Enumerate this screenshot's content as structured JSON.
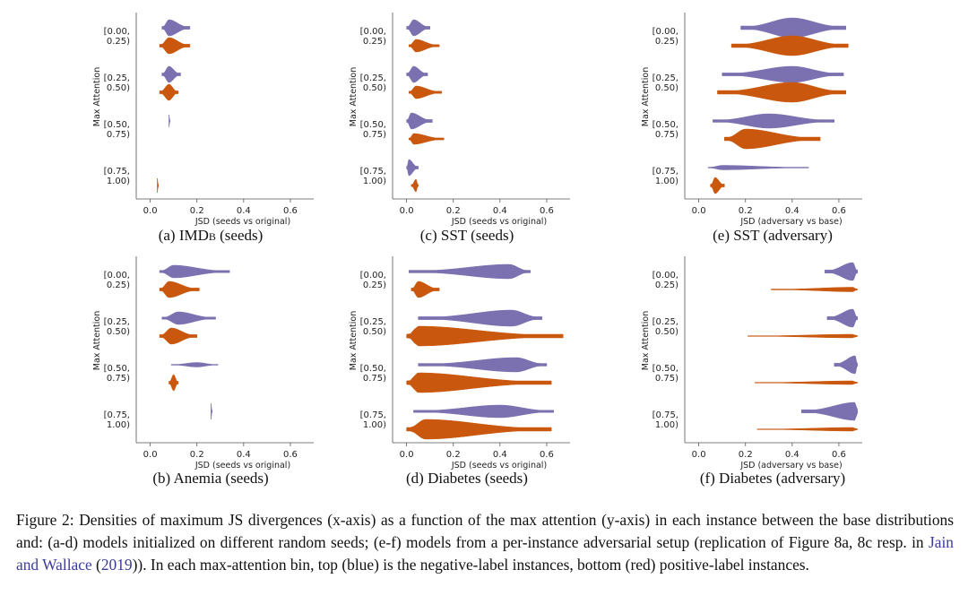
{
  "figure": {
    "caption": {
      "label": "Figure 2:",
      "text_before": " Densities of maximum JS divergences (x-axis) as a function of the max attention (y-axis) in each instance between the base distributions and: (a-d) models initialized on different random seeds; (e-f) models from a per-instance adversarial setup (replication of Figure 8a, 8c resp. in ",
      "ref": "Jain and Wallace",
      "ref_open": " (",
      "ref_year": "2019",
      "text_after": ")).  In each max-attention bin, top (blue) is the negative-label instances, bottom (red) positive-label instances."
    }
  },
  "colors": {
    "negative": "#7b70b0",
    "positive": "#c9580e",
    "axis": "#555555"
  },
  "chart_data": [
    {
      "id": "a",
      "type": "violin",
      "caption_prefix": "(a) IMD",
      "caption_smallcaps": "b",
      "caption_suffix": " (seeds)",
      "ylabel": "Max Attention",
      "xlabel": "JSD (seeds vs original)",
      "xlim": [
        -0.06,
        0.7
      ],
      "xticks": [
        "0.0",
        "0.2",
        "0.4",
        "0.6"
      ],
      "bins": [
        [
          "[0.00,",
          "0.25)"
        ],
        [
          "[0.25,",
          "0.50)"
        ],
        [
          "[0.50,",
          "0.75)"
        ],
        [
          "[0.75,",
          "1.00)"
        ]
      ],
      "series": [
        {
          "name": "negative",
          "violins": [
            [
              0.05,
              0.08,
              0.17,
              9
            ],
            [
              0.05,
              0.08,
              0.13,
              9
            ],
            [
              0.08,
              0.08,
              0.085,
              7
            ],
            null
          ]
        },
        {
          "name": "positive",
          "violins": [
            [
              0.04,
              0.08,
              0.17,
              9
            ],
            [
              0.04,
              0.08,
              0.12,
              9
            ],
            null,
            [
              0.03,
              0.03,
              0.035,
              8
            ]
          ]
        }
      ]
    },
    {
      "id": "b",
      "type": "violin",
      "caption_prefix": "(b) Anemia (seeds)",
      "caption_smallcaps": "",
      "caption_suffix": "",
      "ylabel": "Max Attention",
      "xlabel": "JSD (seeds vs original)",
      "xlim": [
        -0.06,
        0.7
      ],
      "xticks": [
        "0.0",
        "0.2",
        "0.4",
        "0.6"
      ],
      "bins": [
        [
          "[0.00,",
          "0.25)"
        ],
        [
          "[0.25,",
          "0.50)"
        ],
        [
          "[0.50,",
          "0.75)"
        ],
        [
          "[0.75,",
          "1.00)"
        ]
      ],
      "series": [
        {
          "name": "negative",
          "violins": [
            [
              0.04,
              0.1,
              0.34,
              7
            ],
            [
              0.05,
              0.12,
              0.28,
              7
            ],
            [
              0.09,
              0.2,
              0.29,
              2.5
            ],
            [
              0.26,
              0.26,
              0.265,
              9
            ]
          ]
        },
        {
          "name": "positive",
          "violins": [
            [
              0.04,
              0.08,
              0.21,
              9
            ],
            [
              0.04,
              0.09,
              0.2,
              9
            ],
            [
              0.08,
              0.1,
              0.12,
              9
            ],
            null
          ]
        }
      ]
    },
    {
      "id": "c",
      "type": "violin",
      "caption_prefix": "(c) SST (seeds)",
      "caption_smallcaps": "",
      "caption_suffix": "",
      "ylabel": "Max Attention",
      "xlabel": "JSD (seeds vs original)",
      "xlim": [
        -0.06,
        0.7
      ],
      "xticks": [
        "0.0",
        "0.2",
        "0.4",
        "0.6"
      ],
      "bins": [
        [
          "[0.00,",
          "0.25)"
        ],
        [
          "[0.25,",
          "0.50)"
        ],
        [
          "[0.50,",
          "0.75)"
        ],
        [
          "[0.75,",
          "1.00)"
        ]
      ],
      "series": [
        {
          "name": "negative",
          "violins": [
            [
              0.0,
              0.03,
              0.1,
              9
            ],
            [
              0.0,
              0.03,
              0.09,
              9
            ],
            [
              0.0,
              0.02,
              0.11,
              9
            ],
            [
              0.0,
              0.01,
              0.05,
              9
            ]
          ]
        },
        {
          "name": "positive",
          "violins": [
            [
              0.01,
              0.04,
              0.14,
              7
            ],
            [
              0.01,
              0.04,
              0.15,
              7
            ],
            [
              0.01,
              0.03,
              0.16,
              6
            ],
            [
              0.02,
              0.04,
              0.05,
              7
            ]
          ]
        }
      ]
    },
    {
      "id": "d",
      "type": "violin",
      "caption_prefix": "(d) Diabetes (seeds)",
      "caption_smallcaps": "",
      "caption_suffix": "",
      "ylabel": "Max Attention",
      "xlabel": "JSD (seeds vs original)",
      "xlim": [
        -0.06,
        0.7
      ],
      "xticks": [
        "0.0",
        "0.2",
        "0.4",
        "0.6"
      ],
      "bins": [
        [
          "[0.00,",
          "0.25)"
        ],
        [
          "[0.25,",
          "0.50)"
        ],
        [
          "[0.50,",
          "0.75)"
        ],
        [
          "[0.75,",
          "1.00)"
        ]
      ],
      "series": [
        {
          "name": "negative",
          "violins": [
            [
              0.01,
              0.44,
              0.53,
              8
            ],
            [
              0.05,
              0.45,
              0.58,
              9
            ],
            [
              0.05,
              0.47,
              0.6,
              8
            ],
            [
              0.03,
              0.4,
              0.63,
              7
            ]
          ]
        },
        {
          "name": "positive",
          "violins": [
            [
              0.02,
              0.05,
              0.14,
              9
            ],
            [
              0.0,
              0.05,
              0.67,
              11
            ],
            [
              0.0,
              0.05,
              0.62,
              11
            ],
            [
              0.0,
              0.08,
              0.62,
              11
            ]
          ]
        }
      ]
    },
    {
      "id": "e",
      "type": "violin",
      "caption_prefix": "(e) SST (adversary)",
      "caption_smallcaps": "",
      "caption_suffix": "",
      "ylabel": "Max Attention",
      "xlabel": "JSD (adversary vs base)",
      "xlim": [
        -0.06,
        0.7
      ],
      "xticks": [
        "0.0",
        "0.2",
        "0.4",
        "0.6"
      ],
      "bins": [
        [
          "[0.00,",
          "0.25)"
        ],
        [
          "[0.25,",
          "0.50)"
        ],
        [
          "[0.50,",
          "0.75)"
        ],
        [
          "[0.75,",
          "1.00)"
        ]
      ],
      "series": [
        {
          "name": "negative",
          "violins": [
            [
              0.18,
              0.4,
              0.63,
              11
            ],
            [
              0.1,
              0.4,
              0.62,
              9
            ],
            [
              0.06,
              0.3,
              0.58,
              8
            ],
            [
              0.04,
              0.1,
              0.47,
              2.5
            ]
          ]
        },
        {
          "name": "positive",
          "violins": [
            [
              0.14,
              0.4,
              0.64,
              11
            ],
            [
              0.08,
              0.4,
              0.63,
              11
            ],
            [
              0.11,
              0.2,
              0.52,
              11
            ],
            [
              0.05,
              0.07,
              0.11,
              9
            ]
          ]
        }
      ]
    },
    {
      "id": "f",
      "type": "violin",
      "caption_prefix": "(f) Diabetes (adversary)",
      "caption_smallcaps": "",
      "caption_suffix": "",
      "ylabel": "Max Attention",
      "xlabel": "JSD (adversary vs base)",
      "xlim": [
        -0.06,
        0.7
      ],
      "xticks": [
        "0.0",
        "0.2",
        "0.4",
        "0.6"
      ],
      "bins": [
        [
          "[0.00,",
          "0.25)"
        ],
        [
          "[0.25,",
          "0.50)"
        ],
        [
          "[0.50,",
          "0.75)"
        ],
        [
          "[0.75,",
          "1.00)"
        ]
      ],
      "series": [
        {
          "name": "negative",
          "violins": [
            [
              0.54,
              0.66,
              0.68,
              10
            ],
            [
              0.55,
              0.66,
              0.68,
              10
            ],
            [
              0.58,
              0.67,
              0.68,
              10
            ],
            [
              0.44,
              0.67,
              0.68,
              10
            ]
          ]
        },
        {
          "name": "positive",
          "violins": [
            [
              0.31,
              0.66,
              0.68,
              2.5
            ],
            [
              0.21,
              0.66,
              0.68,
              2
            ],
            [
              0.24,
              0.66,
              0.68,
              2
            ],
            [
              0.25,
              0.66,
              0.68,
              2
            ]
          ]
        }
      ]
    }
  ]
}
